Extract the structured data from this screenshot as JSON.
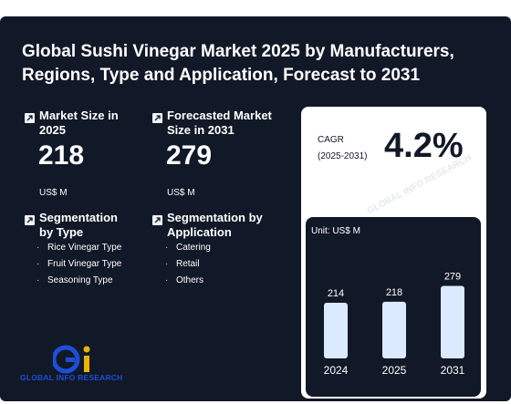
{
  "title": "Global Sushi Vinegar Market 2025 by Manufacturers, Regions, Type and Application, Forecast to 2031",
  "market_size": {
    "label": "Market Size in 2025",
    "value": "218",
    "unit": "US$ M"
  },
  "forecast": {
    "label": "Forecasted Market Size in 2031",
    "value": "279",
    "unit": "US$ M"
  },
  "segmentation_type": {
    "label": "Segmentation by Type",
    "items": [
      "Rice Vinegar Type",
      "Fruit Vinegar Type",
      "Seasoning Type"
    ]
  },
  "segmentation_application": {
    "label": "Segmentation by Application",
    "items": [
      "Catering",
      "Retail",
      "Others"
    ]
  },
  "cagr": {
    "label_line1": "CAGR",
    "label_line2": "(2025-2031)",
    "value": "4.2%"
  },
  "logo_text": "GLOBAL INFO RESEARCH",
  "watermark": "GLOBAL INFO RESEARCH",
  "colors": {
    "background": "#111827",
    "bar": "#dbeafe",
    "logo_blue": "#1d4ed8",
    "logo_yellow": "#eab308"
  },
  "chart_data": {
    "type": "bar",
    "unit_label": "Unit: US$ M",
    "categories": [
      "2024",
      "2025",
      "2031"
    ],
    "values": [
      214,
      218,
      279
    ]
  }
}
